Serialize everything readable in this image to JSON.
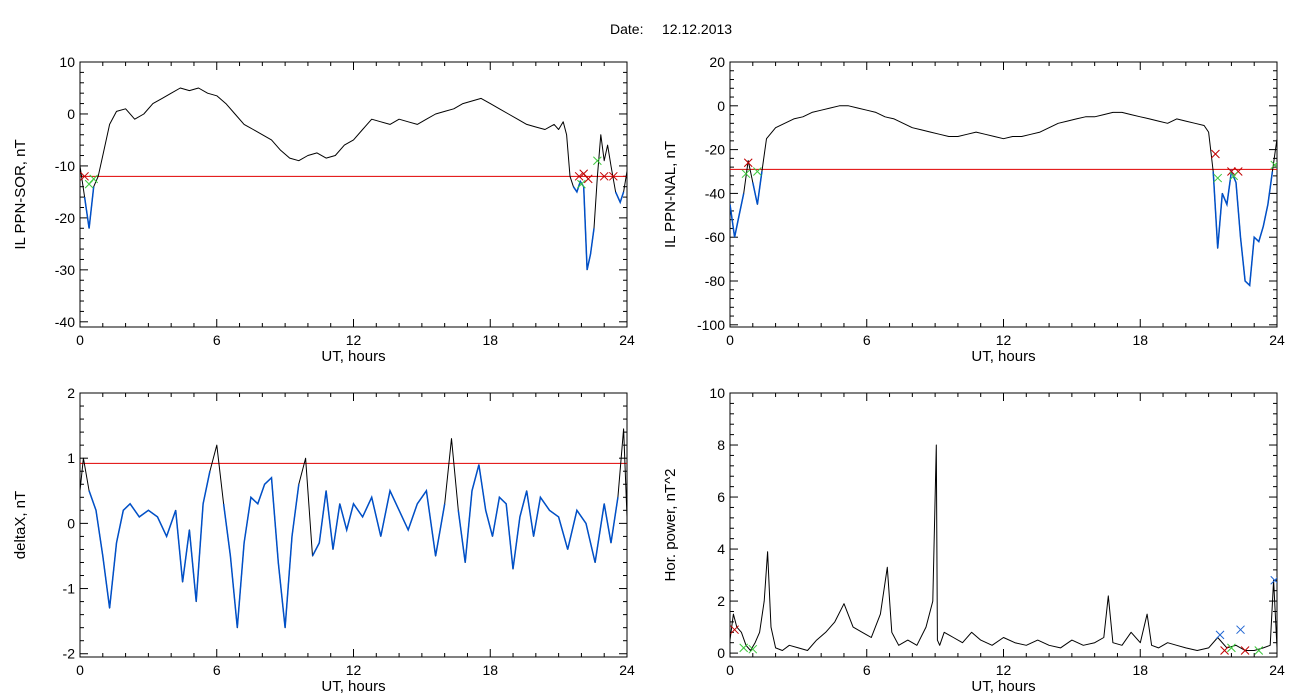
{
  "figure": {
    "date_label": "Date:",
    "date_value": "12.12.2013"
  },
  "colors": {
    "axis": "#000000",
    "trace": "#000000",
    "threshold": "#e00000",
    "highlight": "#0050c8",
    "marker_red": "#c00000",
    "marker_green": "#3cc83c",
    "marker_blue": "#1e64d2"
  },
  "chart_data": [
    {
      "id": "ppn-sor",
      "type": "line",
      "ylabel": "IL PPN-SOR, nT",
      "xlabel": "UT, hours",
      "xlim": [
        0,
        24
      ],
      "ylim": [
        -41,
        10
      ],
      "xticks": [
        0,
        6,
        12,
        18,
        24
      ],
      "yticks": [
        -40,
        -30,
        -20,
        -10,
        0,
        10
      ],
      "threshold": -12,
      "series": [
        {
          "x": [
            0,
            0.2,
            0.4,
            0.6,
            0.8,
            1.0,
            1.3,
            1.6,
            2.0,
            2.4,
            2.8,
            3.2,
            3.6,
            4.0,
            4.4,
            4.8,
            5.2,
            5.6,
            6.0,
            6.4,
            6.8,
            7.2,
            7.6,
            8.0,
            8.4,
            8.8,
            9.2,
            9.6,
            10.0,
            10.4,
            10.8,
            11.2,
            11.6,
            12.0,
            12.4,
            12.8,
            13.2,
            13.6,
            14.0,
            14.4,
            14.8,
            15.2,
            15.6,
            16.0,
            16.4,
            16.8,
            17.2,
            17.6,
            18.0,
            18.4,
            18.8,
            19.2,
            19.6,
            20.0,
            20.4,
            20.8,
            21.0,
            21.2,
            21.35,
            21.5,
            21.65,
            21.8,
            21.95,
            22.1,
            22.25,
            22.4,
            22.55,
            22.7,
            22.85,
            23.0,
            23.15,
            23.3,
            23.5,
            23.7,
            23.85,
            24.0
          ],
          "y": [
            -10,
            -16,
            -22,
            -14,
            -12,
            -8,
            -2,
            0.5,
            1,
            -1,
            0,
            2,
            3,
            4,
            5,
            4.5,
            5,
            4,
            3.5,
            2,
            0,
            -2,
            -3,
            -4,
            -5,
            -7,
            -8.5,
            -9,
            -8,
            -7.5,
            -8.5,
            -8,
            -6,
            -5,
            -3,
            -1,
            -1.5,
            -2,
            -1,
            -1.5,
            -2,
            -1,
            0,
            0.5,
            1,
            2,
            2.5,
            3,
            2,
            1,
            0,
            -1,
            -2,
            -2.5,
            -3,
            -2,
            -3,
            -1.5,
            -4,
            -12,
            -14,
            -15,
            -13,
            -14,
            -30,
            -27,
            -22,
            -12,
            -4,
            -9,
            -6,
            -10,
            -15,
            -17,
            -15,
            -11
          ]
        }
      ],
      "markers": [
        {
          "x": 0.2,
          "y": -12,
          "symbol": "x",
          "color": "red"
        },
        {
          "x": 0.4,
          "y": -13.5,
          "symbol": "x",
          "color": "green"
        },
        {
          "x": 0.6,
          "y": -12.5,
          "symbol": "x",
          "color": "green"
        },
        {
          "x": 21.9,
          "y": -12,
          "symbol": "x",
          "color": "red"
        },
        {
          "x": 22.1,
          "y": -11.5,
          "symbol": "x",
          "color": "red"
        },
        {
          "x": 22.3,
          "y": -12.5,
          "symbol": "x",
          "color": "red"
        },
        {
          "x": 22.0,
          "y": -13.5,
          "symbol": "x",
          "color": "green"
        },
        {
          "x": 22.7,
          "y": -9,
          "symbol": "x",
          "color": "green"
        },
        {
          "x": 23.0,
          "y": -12,
          "symbol": "x",
          "color": "red"
        },
        {
          "x": 23.4,
          "y": -12,
          "symbol": "x",
          "color": "red"
        }
      ]
    },
    {
      "id": "ppn-nal",
      "type": "line",
      "ylabel": "IL PPN-NAL, nT",
      "xlabel": "UT, hours",
      "xlim": [
        0,
        24
      ],
      "ylim": [
        -101,
        20
      ],
      "xticks": [
        0,
        6,
        12,
        18,
        24
      ],
      "yticks": [
        -100,
        -80,
        -60,
        -40,
        -20,
        0,
        20
      ],
      "threshold": -29,
      "series": [
        {
          "x": [
            0,
            0.2,
            0.4,
            0.6,
            0.8,
            1.0,
            1.2,
            1.4,
            1.6,
            2.0,
            2.4,
            2.8,
            3.2,
            3.6,
            4.0,
            4.4,
            4.8,
            5.2,
            5.6,
            6.0,
            6.4,
            6.8,
            7.2,
            7.6,
            8.0,
            8.4,
            8.8,
            9.2,
            9.6,
            10.0,
            10.4,
            10.8,
            11.2,
            11.6,
            12.0,
            12.4,
            12.8,
            13.2,
            13.6,
            14.0,
            14.4,
            14.8,
            15.2,
            15.6,
            16.0,
            16.4,
            16.8,
            17.2,
            17.6,
            18.0,
            18.4,
            18.8,
            19.2,
            19.6,
            20.0,
            20.4,
            20.8,
            21.0,
            21.2,
            21.4,
            21.6,
            21.8,
            22.0,
            22.2,
            22.4,
            22.6,
            22.8,
            23.0,
            23.2,
            23.4,
            23.6,
            23.8,
            24.0
          ],
          "y": [
            -45,
            -60,
            -50,
            -40,
            -25,
            -35,
            -45,
            -30,
            -15,
            -10,
            -8,
            -6,
            -5,
            -3,
            -2,
            -1,
            0,
            0,
            -1,
            -2,
            -3,
            -5,
            -6,
            -8,
            -10,
            -11,
            -12,
            -13,
            -14,
            -14,
            -13,
            -12,
            -13,
            -14,
            -15,
            -14,
            -14,
            -13,
            -12,
            -10,
            -8,
            -7,
            -6,
            -5,
            -5,
            -4,
            -3,
            -3,
            -4,
            -5,
            -6,
            -7,
            -8,
            -6,
            -7,
            -8,
            -9,
            -12,
            -30,
            -65,
            -40,
            -45,
            -30,
            -35,
            -60,
            -80,
            -82,
            -60,
            -62,
            -55,
            -45,
            -30,
            -15
          ]
        }
      ],
      "markers": [
        {
          "x": 0.8,
          "y": -26,
          "symbol": "x",
          "color": "red"
        },
        {
          "x": 0.7,
          "y": -31,
          "symbol": "x",
          "color": "green"
        },
        {
          "x": 1.2,
          "y": -30,
          "symbol": "x",
          "color": "green"
        },
        {
          "x": 21.3,
          "y": -22,
          "symbol": "x",
          "color": "red"
        },
        {
          "x": 21.4,
          "y": -33,
          "symbol": "x",
          "color": "green"
        },
        {
          "x": 22.0,
          "y": -30,
          "symbol": "x",
          "color": "red"
        },
        {
          "x": 22.3,
          "y": -30,
          "symbol": "x",
          "color": "red"
        },
        {
          "x": 22.1,
          "y": -32,
          "symbol": "x",
          "color": "green"
        },
        {
          "x": 23.9,
          "y": -27,
          "symbol": "x",
          "color": "green"
        }
      ]
    },
    {
      "id": "deltax",
      "type": "line",
      "ylabel": "deltaX, nT",
      "xlabel": "UT, hours",
      "xlim": [
        0,
        24
      ],
      "ylim": [
        -2.05,
        2
      ],
      "xticks": [
        0,
        6,
        12,
        18,
        24
      ],
      "yticks": [
        -2,
        -1,
        0,
        1,
        2
      ],
      "threshold": 0.92,
      "series": [
        {
          "x": [
            0,
            0.15,
            0.4,
            0.7,
            1.0,
            1.3,
            1.6,
            1.9,
            2.2,
            2.6,
            3.0,
            3.4,
            3.8,
            4.2,
            4.5,
            4.8,
            5.1,
            5.4,
            5.7,
            6.0,
            6.3,
            6.6,
            6.9,
            7.2,
            7.5,
            7.8,
            8.1,
            8.4,
            8.7,
            9.0,
            9.3,
            9.6,
            9.9,
            10.2,
            10.5,
            10.8,
            11.1,
            11.4,
            11.7,
            12.0,
            12.4,
            12.8,
            13.2,
            13.6,
            14.0,
            14.4,
            14.8,
            15.2,
            15.6,
            16.0,
            16.3,
            16.6,
            16.9,
            17.2,
            17.5,
            17.8,
            18.1,
            18.4,
            18.7,
            19.0,
            19.3,
            19.6,
            19.9,
            20.2,
            20.6,
            21.0,
            21.4,
            21.8,
            22.2,
            22.6,
            23.0,
            23.3,
            23.6,
            23.85,
            24.0
          ],
          "y": [
            0.5,
            1.0,
            0.5,
            0.2,
            -0.5,
            -1.3,
            -0.3,
            0.2,
            0.3,
            0.1,
            0.2,
            0.1,
            -0.2,
            0.2,
            -0.9,
            -0.1,
            -1.2,
            0.3,
            0.8,
            1.2,
            0.3,
            -0.5,
            -1.6,
            -0.3,
            0.4,
            0.3,
            0.6,
            0.7,
            -0.6,
            -1.6,
            -0.2,
            0.6,
            1.0,
            -0.5,
            -0.3,
            0.5,
            -0.4,
            0.3,
            -0.1,
            0.3,
            0.1,
            0.4,
            -0.2,
            0.5,
            0.2,
            -0.1,
            0.3,
            0.5,
            -0.5,
            0.3,
            1.3,
            0.2,
            -0.6,
            0.5,
            0.9,
            0.2,
            -0.2,
            0.4,
            0.3,
            -0.7,
            0.1,
            0.5,
            -0.2,
            0.4,
            0.2,
            0.1,
            -0.4,
            0.2,
            0.0,
            -0.6,
            0.3,
            -0.3,
            0.4,
            1.45,
            0.1
          ]
        }
      ],
      "markers": []
    },
    {
      "id": "hor-power",
      "type": "line",
      "ylabel": "Hor. power, nT^2",
      "xlabel": "UT, hours",
      "xlim": [
        0,
        24
      ],
      "ylim": [
        -0.15,
        10
      ],
      "xticks": [
        0,
        6,
        12,
        18,
        24
      ],
      "yticks": [
        0,
        2,
        4,
        6,
        8,
        10
      ],
      "threshold": null,
      "series": [
        {
          "x": [
            0,
            0.15,
            0.3,
            0.5,
            0.7,
            0.9,
            1.1,
            1.3,
            1.5,
            1.65,
            1.8,
            2.0,
            2.3,
            2.6,
            3.0,
            3.4,
            3.8,
            4.2,
            4.6,
            5.0,
            5.4,
            5.8,
            6.2,
            6.6,
            6.9,
            7.1,
            7.4,
            7.8,
            8.2,
            8.6,
            8.9,
            9.05,
            9.1,
            9.2,
            9.4,
            9.8,
            10.2,
            10.6,
            11.0,
            11.5,
            12.0,
            12.5,
            13.0,
            13.5,
            14.0,
            14.5,
            15.0,
            15.5,
            16.0,
            16.4,
            16.6,
            16.8,
            17.2,
            17.6,
            18.0,
            18.3,
            18.5,
            18.8,
            19.2,
            19.6,
            20.0,
            20.5,
            21.0,
            21.4,
            21.8,
            22.2,
            22.6,
            23.0,
            23.4,
            23.7,
            23.85,
            24.0
          ],
          "y": [
            0.5,
            1.5,
            1.0,
            0.8,
            0.3,
            0.1,
            0.4,
            0.8,
            2.0,
            3.9,
            1.0,
            0.2,
            0.1,
            0.3,
            0.2,
            0.1,
            0.5,
            0.8,
            1.2,
            1.9,
            1.0,
            0.8,
            0.6,
            1.5,
            3.3,
            0.8,
            0.3,
            0.5,
            0.3,
            1.0,
            2.0,
            8.0,
            0.5,
            0.3,
            0.8,
            0.6,
            0.4,
            0.8,
            0.5,
            0.3,
            0.6,
            0.4,
            0.3,
            0.5,
            0.3,
            0.2,
            0.5,
            0.3,
            0.4,
            0.6,
            2.2,
            0.4,
            0.3,
            0.8,
            0.4,
            1.5,
            0.3,
            0.2,
            0.4,
            0.3,
            0.2,
            0.1,
            0.2,
            0.6,
            0.2,
            0.3,
            0.1,
            0.1,
            0.2,
            0.3,
            2.8,
            0.2
          ]
        }
      ],
      "markers": [
        {
          "x": 0.2,
          "y": 0.9,
          "symbol": "x",
          "color": "red"
        },
        {
          "x": 0.6,
          "y": 0.2,
          "symbol": "x",
          "color": "green"
        },
        {
          "x": 1.0,
          "y": 0.15,
          "symbol": "x",
          "color": "green"
        },
        {
          "x": 21.5,
          "y": 0.7,
          "symbol": "x",
          "color": "blue"
        },
        {
          "x": 21.7,
          "y": 0.1,
          "symbol": "x",
          "color": "red"
        },
        {
          "x": 22.0,
          "y": 0.2,
          "symbol": "x",
          "color": "green"
        },
        {
          "x": 22.4,
          "y": 0.9,
          "symbol": "x",
          "color": "blue"
        },
        {
          "x": 22.6,
          "y": 0.1,
          "symbol": "x",
          "color": "red"
        },
        {
          "x": 23.2,
          "y": 0.1,
          "symbol": "x",
          "color": "green"
        },
        {
          "x": 23.9,
          "y": 2.8,
          "symbol": "x",
          "color": "blue"
        }
      ]
    }
  ]
}
